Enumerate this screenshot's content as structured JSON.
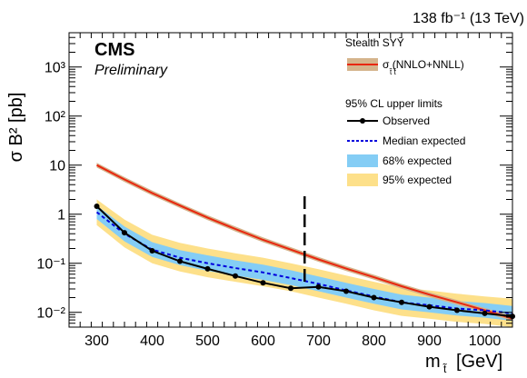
{
  "chart_data": {
    "type": "line",
    "lumi_label": "138 fb⁻¹ (13 TeV)",
    "experiment": "CMS",
    "status": "Preliminary",
    "xlabel": "m",
    "xlabel_sub": "t̃",
    "xlabel_unit": "[GeV]",
    "ylabel": "σ B² [pb]",
    "xlim": [
      250,
      1050
    ],
    "ylim": [
      0.005,
      5000
    ],
    "y_scale": "log",
    "x_ticks": [
      300,
      400,
      500,
      600,
      700,
      800,
      900,
      1000
    ],
    "y_ticks": [
      {
        "value": 0.01,
        "label": "10⁻²"
      },
      {
        "value": 0.1,
        "label": "10⁻¹"
      },
      {
        "value": 1,
        "label": "1"
      },
      {
        "value": 10,
        "label": "10"
      },
      {
        "value": 100,
        "label": "10²"
      },
      {
        "value": 1000,
        "label": "10³"
      }
    ],
    "vertical_marker_x": 675,
    "legend": {
      "position": "top-right",
      "model_title": "Stealth SYȲ",
      "theory_label": "σ  (NNLO+NNLL)",
      "theory_sub": "t̃ t̃",
      "limits_title": "95% CL upper limits",
      "observed_label": "Observed",
      "expected_label": "Median expected",
      "band68_label": "68% expected",
      "band95_label": "95% expected"
    },
    "colors": {
      "theory": "#e8270f",
      "theory_band": "#d5b48c",
      "observed": "#000000",
      "expected": "#0000dd",
      "band68": "#84cdf5",
      "band95": "#fde08a"
    },
    "theory": {
      "x": [
        300,
        350,
        400,
        450,
        500,
        550,
        600,
        650,
        700,
        750,
        800,
        850,
        900,
        950,
        1000,
        1050
      ],
      "y": [
        10.0,
        5.1,
        2.7,
        1.5,
        0.85,
        0.5,
        0.3,
        0.19,
        0.12,
        0.078,
        0.052,
        0.034,
        0.023,
        0.016,
        0.011,
        0.0075
      ]
    },
    "observed": {
      "x": [
        300,
        350,
        400,
        450,
        500,
        550,
        600,
        650,
        700,
        750,
        800,
        850,
        900,
        950,
        1000,
        1050
      ],
      "y": [
        1.45,
        0.42,
        0.18,
        0.11,
        0.077,
        0.055,
        0.04,
        0.031,
        0.033,
        0.027,
        0.02,
        0.016,
        0.013,
        0.011,
        0.0095,
        0.0083
      ]
    },
    "expected": {
      "x": [
        300,
        350,
        400,
        450,
        500,
        550,
        600,
        650,
        700,
        750,
        800,
        850,
        900,
        950,
        1000,
        1050
      ],
      "y": [
        1.1,
        0.4,
        0.19,
        0.13,
        0.1,
        0.08,
        0.065,
        0.05,
        0.038,
        0.028,
        0.021,
        0.016,
        0.014,
        0.012,
        0.011,
        0.0095
      ]
    },
    "band68": {
      "x": [
        300,
        350,
        400,
        450,
        500,
        550,
        600,
        650,
        700,
        750,
        800,
        850,
        900,
        950,
        1000,
        1050
      ],
      "lo": [
        0.8,
        0.28,
        0.135,
        0.092,
        0.07,
        0.056,
        0.046,
        0.036,
        0.027,
        0.02,
        0.015,
        0.0115,
        0.01,
        0.0086,
        0.0078,
        0.0067
      ],
      "hi": [
        1.5,
        0.56,
        0.27,
        0.185,
        0.145,
        0.115,
        0.094,
        0.072,
        0.054,
        0.04,
        0.03,
        0.023,
        0.02,
        0.017,
        0.0155,
        0.0135
      ]
    },
    "band95": {
      "x": [
        300,
        350,
        400,
        450,
        500,
        550,
        600,
        650,
        700,
        750,
        800,
        850,
        900,
        950,
        1000,
        1050
      ],
      "lo": [
        0.6,
        0.21,
        0.1,
        0.068,
        0.052,
        0.042,
        0.034,
        0.027,
        0.02,
        0.015,
        0.011,
        0.0085,
        0.0074,
        0.0064,
        0.0058,
        0.005
      ],
      "hi": [
        2.0,
        0.78,
        0.38,
        0.26,
        0.2,
        0.16,
        0.13,
        0.1,
        0.076,
        0.056,
        0.042,
        0.032,
        0.028,
        0.024,
        0.021,
        0.019
      ]
    }
  }
}
